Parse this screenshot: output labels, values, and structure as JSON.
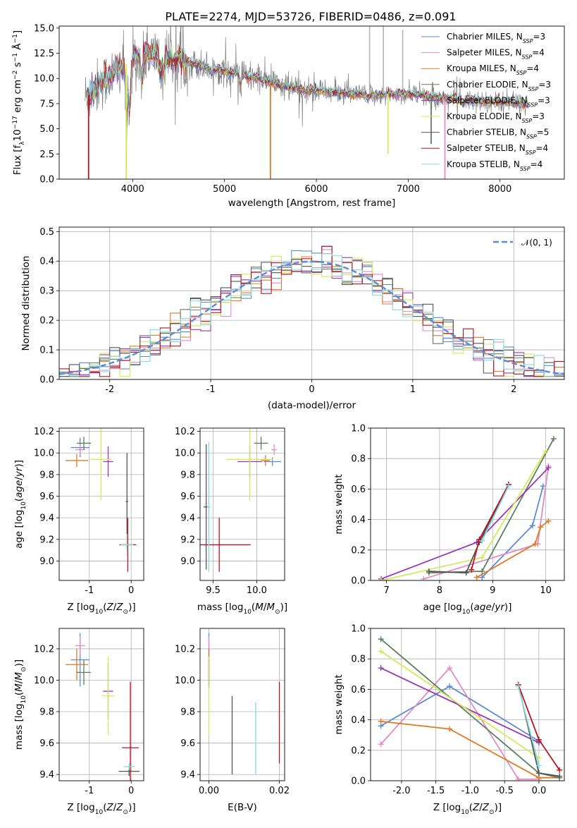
{
  "figure": {
    "title": "PLATE=2274, MJD=53726, FIBERID=0486, z=0.091"
  },
  "models": [
    {
      "name": "Chabrier MILES",
      "nssp": "3",
      "color": "#5b8bd8"
    },
    {
      "name": "Salpeter MILES",
      "nssp": "4",
      "color": "#e58bc3"
    },
    {
      "name": "Kroupa MILES",
      "nssp": "4",
      "color": "#e07a24"
    },
    {
      "name": "Chabrier ELODIE",
      "nssp": "3",
      "color": "#5b7f5f"
    },
    {
      "name": "Salpeter ELODIE",
      "nssp": "3",
      "color": "#9a35b5"
    },
    {
      "name": "Kroupa ELODIE",
      "nssp": "3",
      "color": "#d2ea5a"
    },
    {
      "name": "Chabrier STELIB",
      "nssp": "5",
      "color": "#545454"
    },
    {
      "name": "Salpeter STELIB",
      "nssp": "4",
      "color": "#b8141f"
    },
    {
      "name": "Kroupa STELIB",
      "nssp": "4",
      "color": "#86dcdc"
    }
  ],
  "chart_data": [
    {
      "id": "spectrum",
      "type": "line",
      "title": "PLATE=2274, MJD=53726, FIBERID=0486, z=0.091",
      "xlabel": "wavelength [Angstrom, rest frame]",
      "ylabel": "Flux [f",
      "xlim": [
        3200,
        8700
      ],
      "ylim": [
        0,
        15.2
      ],
      "xticks": [
        4000,
        5000,
        6000,
        7000,
        8000
      ],
      "yticks": [
        0.0,
        2.5,
        5.0,
        7.5,
        10.0,
        12.5,
        15.0
      ],
      "data_color": "#7f7f7f",
      "continuum": [
        [
          3500,
          8.2
        ],
        [
          3650,
          9.5
        ],
        [
          3800,
          10.6
        ],
        [
          3950,
          11.6
        ],
        [
          4100,
          12.5
        ],
        [
          4300,
          12.3
        ],
        [
          4500,
          11.8
        ],
        [
          4700,
          11.4
        ],
        [
          5000,
          10.7
        ],
        [
          5200,
          10.4
        ],
        [
          5500,
          9.6
        ],
        [
          5700,
          9.1
        ],
        [
          6000,
          8.8
        ],
        [
          6300,
          8.5
        ],
        [
          6600,
          8.3
        ],
        [
          6800,
          8.4
        ],
        [
          7000,
          8.5
        ],
        [
          7300,
          8.1
        ],
        [
          7600,
          7.9
        ],
        [
          7900,
          7.7
        ],
        [
          8150,
          7.6
        ],
        [
          8300,
          7.5
        ]
      ],
      "features": [
        [
          3934,
          5.2
        ],
        [
          3969,
          6.0
        ],
        [
          4101,
          9.7
        ],
        [
          4304,
          10.2
        ],
        [
          4340,
          10.5
        ],
        [
          4861,
          10.4
        ],
        [
          5175,
          9.3
        ],
        [
          5270,
          9.8
        ],
        [
          5890,
          8.4
        ],
        [
          6563,
          8.0
        ],
        [
          7600,
          7.3
        ]
      ],
      "model_glitches": [
        [
          3520,
          0,
          3
        ],
        [
          3930,
          0,
          5
        ],
        [
          5500,
          0,
          2
        ],
        [
          6780,
          2.5,
          5
        ],
        [
          7250,
          3.5,
          6
        ],
        [
          7400,
          0,
          7
        ]
      ],
      "data_spikes": [
        [
          6580,
          15.2
        ],
        [
          6730,
          15.2
        ],
        [
          6940,
          14.8
        ]
      ],
      "legend": "upper-right"
    },
    {
      "id": "residual-histogram",
      "type": "histogram",
      "xlabel": "(data-model)/error",
      "ylabel": "Normed distribution",
      "xlim": [
        -2.5,
        2.5
      ],
      "ylim": [
        0,
        0.515
      ],
      "xticks": [
        -2,
        -1,
        0,
        1,
        2
      ],
      "yticks": [
        0.0,
        0.1,
        0.2,
        0.3,
        0.4,
        0.5
      ],
      "bin_width": 0.1,
      "reference_label": "𝒩(0, 1)",
      "reference_color": "#5b8bd8",
      "legend": "upper-right"
    },
    {
      "id": "age-vs-z",
      "type": "scatter",
      "xlabel": "Z [log10(Z/Z⊙)]",
      "ylabel": "age  [log10(age/yr)]",
      "xlim": [
        -1.72,
        0.3
      ],
      "ylim": [
        8.82,
        10.23
      ],
      "xticks": [
        -1,
        0
      ],
      "yticks": [
        9.0,
        9.2,
        9.4,
        9.6,
        9.8,
        10.0,
        10.2
      ],
      "points": [
        {
          "model": 0,
          "x": -1.22,
          "xerr": 0.22,
          "y": 10.05,
          "yerr": 0.09
        },
        {
          "model": 1,
          "x": -1.22,
          "xerr": 0.12,
          "y": 10.03,
          "yerr": 0.05
        },
        {
          "model": 2,
          "x": -1.3,
          "xerr": 0.27,
          "y": 9.93,
          "yerr": 0.06
        },
        {
          "model": 3,
          "x": -1.13,
          "xerr": 0.17,
          "y": 10.09,
          "yerr": 0.06
        },
        {
          "model": 4,
          "x": -0.55,
          "xerr": 0.12,
          "y": 9.92,
          "yerr": 0.14
        },
        {
          "model": 5,
          "x": -0.72,
          "xerr": 0.25,
          "y": 9.94,
          "yerr": 0.38
        },
        {
          "model": 6,
          "x": -0.1,
          "xerr": 0.03,
          "y": 9.55,
          "yerr": 0.45
        },
        {
          "model": 7,
          "x": -0.08,
          "xerr": 0.2,
          "y": 9.15,
          "yerr": 0.25
        },
        {
          "model": 8,
          "x": -0.1,
          "xerr": 0.15,
          "y": 9.15,
          "yerr": 0.1
        }
      ]
    },
    {
      "id": "age-vs-mass",
      "type": "scatter",
      "xlabel": "mass [log10(M/M⊙)]",
      "ylabel": "",
      "xlim": [
        9.35,
        10.32
      ],
      "ylim": [
        8.82,
        10.23
      ],
      "xticks": [
        9.5,
        10.0
      ],
      "yticks": [
        9.0,
        9.2,
        9.4,
        9.6,
        9.8,
        10.0,
        10.2
      ],
      "points": [
        {
          "model": 0,
          "x": 10.18,
          "xerr": 0.1,
          "y": 9.92,
          "yerr": 0.04
        },
        {
          "model": 1,
          "x": 10.2,
          "xerr": 0.03,
          "y": 10.03,
          "yerr": 0.05
        },
        {
          "model": 2,
          "x": 10.1,
          "xerr": 0.05,
          "y": 9.93,
          "yerr": 0.05
        },
        {
          "model": 3,
          "x": 10.05,
          "xerr": 0.08,
          "y": 10.09,
          "yerr": 0.06
        },
        {
          "model": 4,
          "x": 9.92,
          "xerr": 0.14,
          "y": 9.92,
          "yerr": 0.14
        },
        {
          "model": 5,
          "x": 9.92,
          "xerr": 0.27,
          "y": 9.94,
          "yerr": 0.38
        },
        {
          "model": 6,
          "x": 9.42,
          "xerr": 0.03,
          "y": 9.5,
          "yerr": 0.58
        },
        {
          "model": 7,
          "x": 9.57,
          "xerr": 0.36,
          "y": 9.15,
          "yerr": 0.25
        },
        {
          "model": 8,
          "x": 9.45,
          "xerr": 0.02,
          "y": 9.5,
          "yerr": 0.6
        }
      ]
    },
    {
      "id": "weight-vs-age",
      "type": "line",
      "xlabel": "age  [log10(age/yr)]",
      "ylabel": "mass weight",
      "xlim": [
        6.7,
        10.35
      ],
      "ylim": [
        0,
        1.0
      ],
      "xticks": [
        7,
        8,
        9,
        10
      ],
      "yticks": [
        0.0,
        0.2,
        0.4,
        0.6,
        0.8,
        1.0
      ],
      "series": [
        {
          "model": 0,
          "x": [
            8.8,
            9.75,
            9.95
          ],
          "y": [
            0.02,
            0.36,
            0.62
          ]
        },
        {
          "model": 1,
          "x": [
            7.7,
            9.85,
            10.05
          ],
          "y": [
            0.01,
            0.24,
            0.75
          ]
        },
        {
          "model": 2,
          "x": [
            8.7,
            9.8,
            9.9,
            10.05
          ],
          "y": [
            0.02,
            0.24,
            0.35,
            0.39
          ]
        },
        {
          "model": 3,
          "x": [
            7.8,
            8.8,
            10.15
          ],
          "y": [
            0.05,
            0.06,
            0.93
          ]
        },
        {
          "model": 4,
          "x": [
            6.9,
            8.7,
            10.05
          ],
          "y": [
            0.01,
            0.25,
            0.74
          ]
        },
        {
          "model": 5,
          "x": [
            6.9,
            8.8,
            10.0
          ],
          "y": [
            0.0,
            0.15,
            0.85
          ]
        },
        {
          "model": 6,
          "x": [
            7.8,
            8.5,
            8.75,
            9.3
          ],
          "y": [
            0.06,
            0.05,
            0.25,
            0.63
          ]
        },
        {
          "model": 7,
          "x": [
            8.6,
            8.75,
            9.3
          ],
          "y": [
            0.07,
            0.27,
            0.63
          ]
        },
        {
          "model": 8,
          "x": [
            8.8,
            9.3
          ],
          "y": [
            0.26,
            0.62
          ]
        }
      ]
    },
    {
      "id": "mass-vs-z",
      "type": "scatter",
      "xlabel": "Z [log10(Z/Z⊙)]",
      "ylabel": "mass [log10(M/M⊙)]",
      "xlim": [
        -1.72,
        0.3
      ],
      "ylim": [
        9.36,
        10.33
      ],
      "xticks": [
        -1,
        0
      ],
      "yticks": [
        9.4,
        9.6,
        9.8,
        10.0,
        10.2
      ],
      "points": [
        {
          "model": 0,
          "x": -1.22,
          "xerr": 0.22,
          "y": 10.13,
          "yerr": 0.17
        },
        {
          "model": 1,
          "x": -1.22,
          "xerr": 0.12,
          "y": 10.22,
          "yerr": 0.06
        },
        {
          "model": 2,
          "x": -1.3,
          "xerr": 0.27,
          "y": 10.1,
          "yerr": 0.1
        },
        {
          "model": 3,
          "x": -1.13,
          "xerr": 0.17,
          "y": 10.05,
          "yerr": 0.08
        },
        {
          "model": 4,
          "x": -0.55,
          "xerr": 0.12,
          "y": 9.93,
          "yerr": 0.18
        },
        {
          "model": 5,
          "x": -0.55,
          "xerr": 0.15,
          "y": 9.9,
          "yerr": 0.25
        },
        {
          "model": 6,
          "x": -0.05,
          "xerr": 0.25,
          "y": 9.42,
          "yerr": 0.03
        },
        {
          "model": 7,
          "x": -0.02,
          "xerr": 0.2,
          "y": 9.57,
          "yerr": 0.42
        },
        {
          "model": 8,
          "x": -0.05,
          "xerr": 0.13,
          "y": 9.45,
          "yerr": 0.02
        }
      ]
    },
    {
      "id": "mass-vs-ebv",
      "type": "scatter",
      "xlabel": "E(B-V)",
      "ylabel": "",
      "xlim": [
        -0.0025,
        0.0215
      ],
      "ylim": [
        9.36,
        10.33
      ],
      "xticks": [
        0.0,
        0.02
      ],
      "yticks": [
        9.4,
        9.6,
        9.8,
        10.0,
        10.2
      ],
      "points": [
        {
          "model": 0,
          "x": 0.0,
          "xerr": 0,
          "y": 10.13,
          "yerr": 0.17
        },
        {
          "model": 1,
          "x": 0.0,
          "xerr": 0,
          "y": 10.22,
          "yerr": 0.06
        },
        {
          "model": 2,
          "x": 0.0,
          "xerr": 0,
          "y": 10.1,
          "yerr": 0.1
        },
        {
          "model": 3,
          "x": 0.0,
          "xerr": 0,
          "y": 10.05,
          "yerr": 0.08
        },
        {
          "model": 4,
          "x": 0.0,
          "xerr": 0,
          "y": 10.05,
          "yerr": 0.1
        },
        {
          "model": 5,
          "x": 0.0,
          "xerr": 0,
          "y": 9.9,
          "yerr": 0.25
        },
        {
          "model": 6,
          "x": 0.0066,
          "xerr": 0,
          "y": 9.65,
          "yerr": 0.25
        },
        {
          "model": 7,
          "x": 0.02,
          "xerr": 0,
          "y": 9.73,
          "yerr": 0.26
        },
        {
          "model": 8,
          "x": 0.0133,
          "xerr": 0,
          "y": 9.63,
          "yerr": 0.23
        }
      ]
    },
    {
      "id": "weight-vs-z",
      "type": "line",
      "xlabel": "Z [log10(Z/Z⊙)]",
      "ylabel": "mass weight",
      "xlim": [
        -2.45,
        0.37
      ],
      "ylim": [
        0,
        1.0
      ],
      "xticks": [
        -2.0,
        -1.5,
        -1.0,
        -0.5,
        0.0
      ],
      "yticks": [
        0.0,
        0.2,
        0.4,
        0.6,
        0.8,
        1.0
      ],
      "series": [
        {
          "model": 0,
          "x": [
            -2.3,
            -1.3,
            0.0
          ],
          "y": [
            0.36,
            0.62,
            0.26
          ]
        },
        {
          "model": 1,
          "x": [
            -2.3,
            -1.3,
            -0.3,
            0.0
          ],
          "y": [
            0.24,
            0.74,
            0.01,
            0.01
          ]
        },
        {
          "model": 2,
          "x": [
            -2.3,
            -1.3,
            0.0,
            0.3
          ],
          "y": [
            0.39,
            0.34,
            0.02,
            0.02
          ]
        },
        {
          "model": 3,
          "x": [
            -2.3,
            0.0,
            0.3
          ],
          "y": [
            0.93,
            0.05,
            0.02
          ]
        },
        {
          "model": 4,
          "x": [
            -2.3,
            0.0
          ],
          "y": [
            0.74,
            0.25
          ]
        },
        {
          "model": 5,
          "x": [
            -2.3,
            0.0
          ],
          "y": [
            0.85,
            0.15
          ]
        },
        {
          "model": 6,
          "x": [
            -0.3,
            0.0,
            0.3
          ],
          "y": [
            0.63,
            0.05,
            0.03
          ]
        },
        {
          "model": 7,
          "x": [
            -0.3,
            0.0,
            0.3
          ],
          "y": [
            0.63,
            0.27,
            0.07
          ]
        },
        {
          "model": 8,
          "x": [
            -0.3,
            0.0
          ],
          "y": [
            0.62,
            0.1
          ]
        }
      ]
    }
  ]
}
